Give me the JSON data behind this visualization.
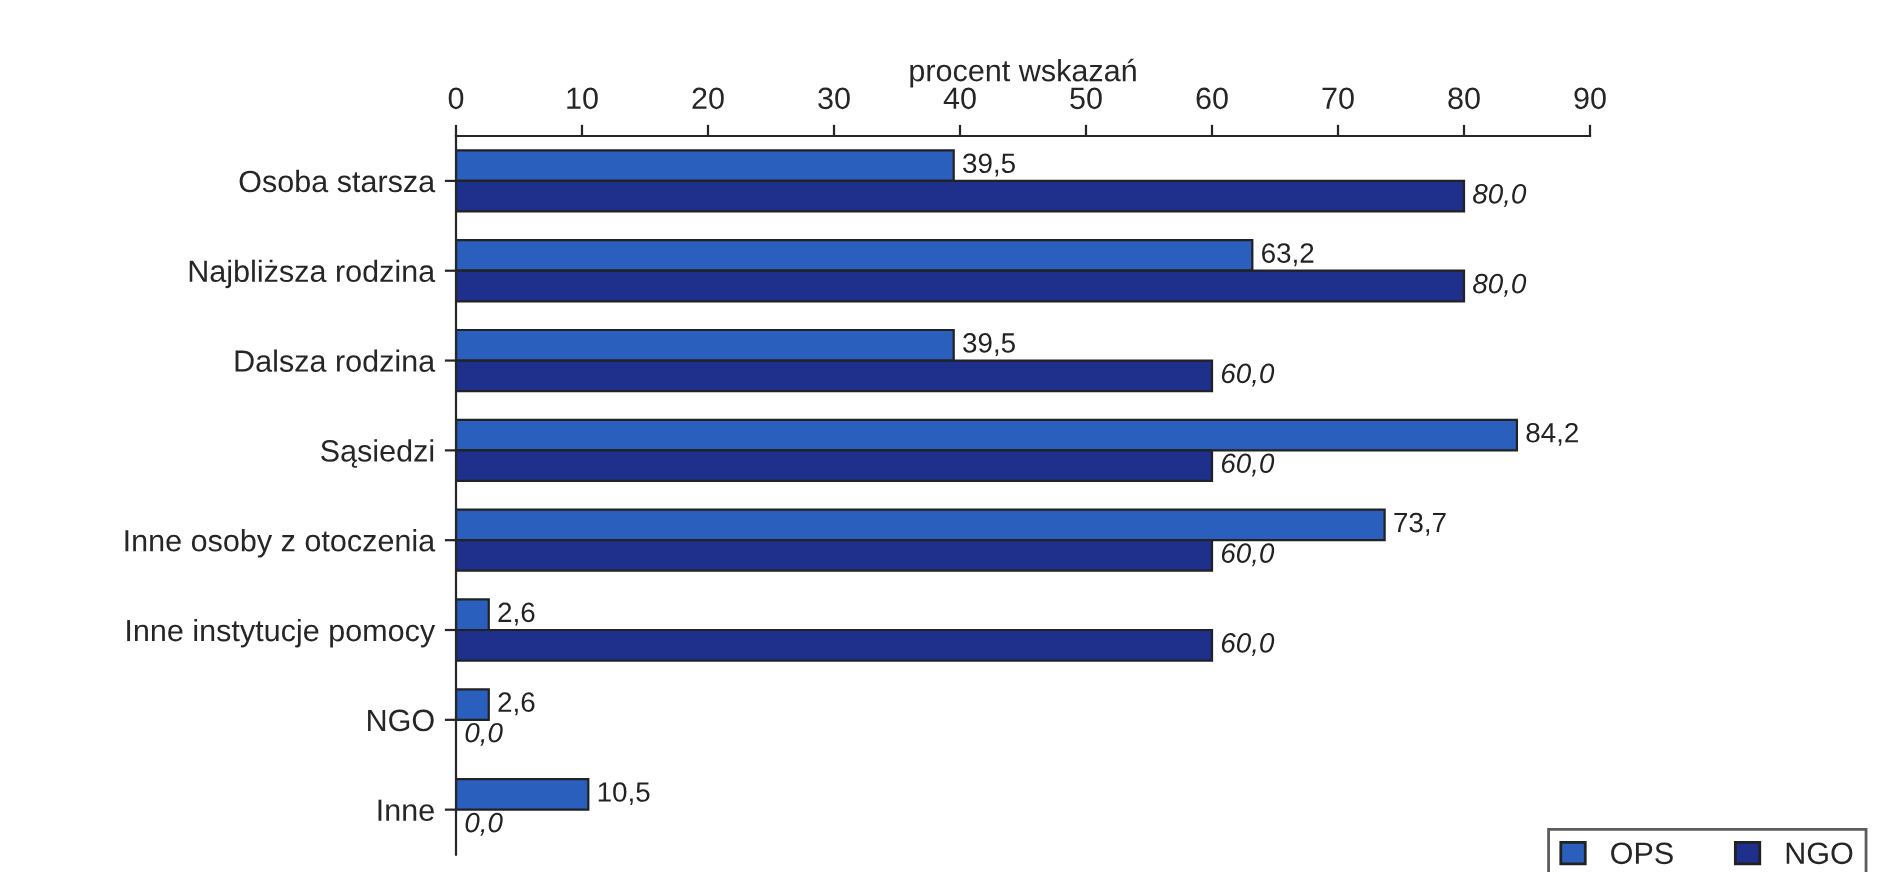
{
  "chart_data": {
    "type": "bar",
    "orientation": "horizontal",
    "xlabel": "procent wskazań",
    "categories": [
      "Osoba starsza",
      "Najbliższa rodzina",
      "Dalsza rodzina",
      "Sąsiedzi",
      "Inne osoby z otoczenia",
      "Inne instytucje pomocy",
      "NGO",
      "Inne"
    ],
    "series": [
      {
        "name": "OPS",
        "color": "#2b5fbe",
        "values": [
          39.5,
          63.2,
          39.5,
          84.2,
          73.7,
          2.6,
          2.6,
          10.5
        ],
        "value_labels": [
          "39,5",
          "63,2",
          "39,5",
          "84,2",
          "73,7",
          "2,6",
          "2,6",
          "10,5"
        ]
      },
      {
        "name": "NGO",
        "color": "#1f2f8c",
        "values": [
          80.0,
          80.0,
          60.0,
          60.0,
          60.0,
          60.0,
          0.0,
          0.0
        ],
        "value_labels": [
          "80,0",
          "80,0",
          "60,0",
          "60,0",
          "60,0",
          "60,0",
          "0,0",
          "0,0"
        ]
      }
    ],
    "xlim": [
      0,
      90
    ],
    "xticks": [
      0,
      10,
      20,
      30,
      40,
      50,
      60,
      70,
      80,
      90
    ],
    "grid": false,
    "legend": "bottom right"
  }
}
